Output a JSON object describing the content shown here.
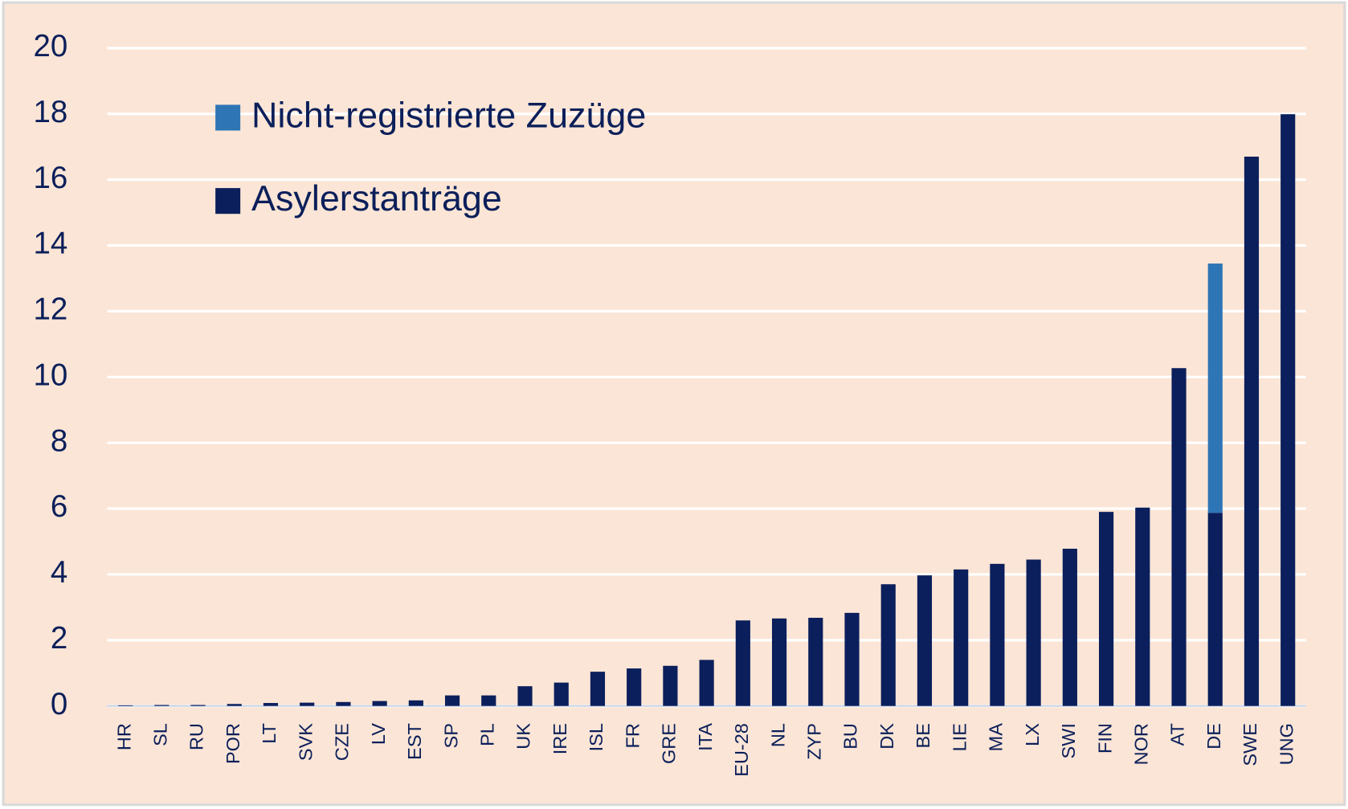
{
  "chart_data": {
    "type": "stacked_bar",
    "categories": [
      "HR",
      "SL",
      "RU",
      "POR",
      "LT",
      "SVK",
      "CZE",
      "LV",
      "EST",
      "SP",
      "PL",
      "UK",
      "IRE",
      "ISL",
      "FR",
      "GRE",
      "ITA",
      "EU-28",
      "NL",
      "ZYP",
      "BU",
      "DK",
      "BE",
      "LIE",
      "MA",
      "LX",
      "SWI",
      "FIN",
      "NOR",
      "AT",
      "DE",
      "SWE",
      "UNG"
    ],
    "series": [
      {
        "name": "Asylerstanträge",
        "color": "#0b1f5c",
        "values": [
          0.02,
          0.03,
          0.03,
          0.06,
          0.09,
          0.1,
          0.12,
          0.15,
          0.17,
          0.32,
          0.32,
          0.6,
          0.71,
          1.04,
          1.14,
          1.22,
          1.4,
          2.6,
          2.66,
          2.68,
          2.83,
          3.7,
          3.97,
          4.15,
          4.32,
          4.45,
          4.78,
          5.9,
          6.03,
          10.27,
          5.87,
          16.7,
          17.99
        ]
      },
      {
        "name": "Nicht-registrierte Zuzüge",
        "color": "#2e75b6",
        "values": [
          0,
          0,
          0,
          0,
          0,
          0,
          0,
          0,
          0,
          0,
          0,
          0,
          0,
          0,
          0,
          0,
          0,
          0,
          0,
          0,
          0,
          0,
          0,
          0,
          0,
          0,
          0,
          0,
          0,
          0,
          7.58,
          0,
          0
        ]
      }
    ],
    "ylim": [
      0,
      20
    ],
    "yticks": [
      0,
      2,
      4,
      6,
      8,
      10,
      12,
      14,
      16,
      18,
      20
    ],
    "grid": true
  }
}
